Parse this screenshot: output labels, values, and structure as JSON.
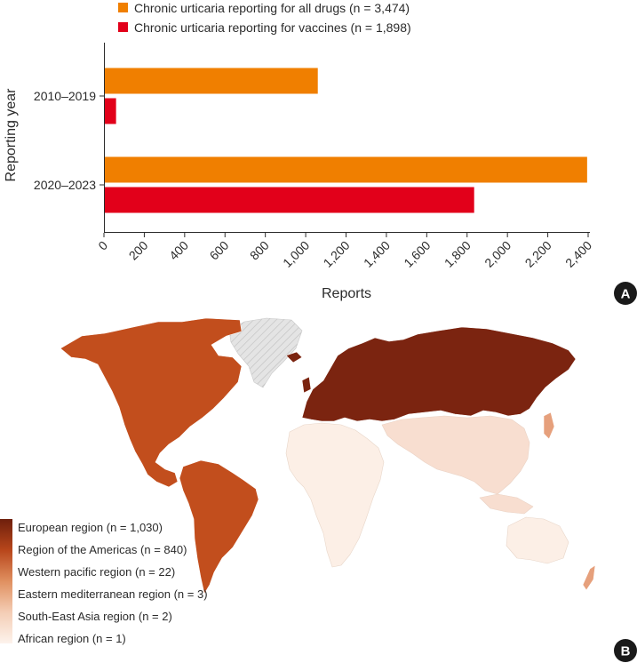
{
  "chart_data": [
    {
      "type": "bar",
      "orientation": "horizontal",
      "categories": [
        "2010–2019",
        "2020–2023"
      ],
      "series": [
        {
          "name": "Chronic urticaria reporting for all drugs (n = 3,474)",
          "values": [
            1060,
            2395
          ],
          "color": "#f07f00"
        },
        {
          "name": "Chronic urticaria reporting for vaccines (n = 1,898)",
          "values": [
            60,
            1835
          ],
          "color": "#e2001a"
        }
      ],
      "xlabel": "Reports",
      "ylabel": "Reporting year",
      "xlim": [
        0,
        2400
      ],
      "xticks": [
        0,
        200,
        400,
        600,
        800,
        1000,
        1200,
        1400,
        1600,
        1800,
        2000,
        2200,
        2400
      ],
      "xtick_labels": [
        "0",
        "200",
        "400",
        "600",
        "800",
        "1,000",
        "1,200",
        "1,400",
        "1,600",
        "1,800",
        "2,000",
        "2,200",
        "2,400"
      ],
      "legend": "top",
      "grid": false,
      "panel_label": "A"
    },
    {
      "type": "choropleth",
      "regions": [
        {
          "name": "European region (n = 1,030)",
          "value": 1030,
          "color": "#7b2410"
        },
        {
          "name": "Region of the Americas (n = 840)",
          "value": 840,
          "color": "#c24e1d"
        },
        {
          "name": "Western pacific region (n = 22)",
          "value": 22,
          "color": "#e6a07c"
        },
        {
          "name": "Eastern mediterranean region (n = 3)",
          "value": 3,
          "color": "#f1c8b0"
        },
        {
          "name": "South-East Asia region (n = 2)",
          "value": 2,
          "color": "#f8ded0"
        },
        {
          "name": "African region (n = 1)",
          "value": 1,
          "color": "#fcefe6"
        }
      ],
      "legend": "bottom-left",
      "panel_label": "B"
    }
  ]
}
